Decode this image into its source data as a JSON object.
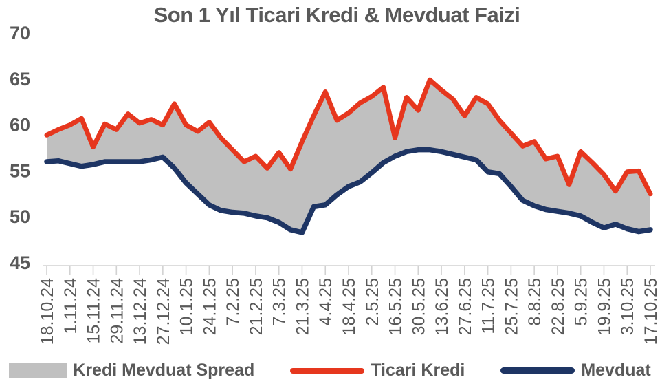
{
  "title": "Son 1 Yıl Ticari Kredi & Mevduat Faizi",
  "colors": {
    "line_red": "#E6371E",
    "line_navy": "#1E3564",
    "spread_fill": "#C0C0C0",
    "text_gray": "#595959",
    "axis_gray": "#D2D2D2"
  },
  "chart_data": {
    "type": "line",
    "title": "Son 1 Yıl Ticari Kredi & Mevduat Faizi",
    "xlabel": "",
    "ylabel": "",
    "ylim": [
      45,
      70
    ],
    "yticks": [
      45,
      50,
      55,
      60,
      65,
      70
    ],
    "grid": false,
    "legend_position": "bottom",
    "x_label_step": 2,
    "x": [
      "18.10.24",
      "25.10.24",
      "1.11.24",
      "8.11.24",
      "15.11.24",
      "22.11.24",
      "29.11.24",
      "6.12.24",
      "13.12.24",
      "20.12.24",
      "27.12.24",
      "3.1.25",
      "10.1.25",
      "17.1.25",
      "24.1.25",
      "31.1.25",
      "7.2.25",
      "14.2.25",
      "21.2.25",
      "28.2.25",
      "7.3.25",
      "14.3.25",
      "21.3.25",
      "28.3.25",
      "4.4.25",
      "11.4.25",
      "18.4.25",
      "25.4.25",
      "2.5.25",
      "9.5.25",
      "16.5.25",
      "23.5.25",
      "30.5.25",
      "6.6.25",
      "13.6.25",
      "20.6.25",
      "27.6.25",
      "4.7.25",
      "11.7.25",
      "18.7.25",
      "25.7.25",
      "1.8.25",
      "8.8.25",
      "15.8.25",
      "22.8.25",
      "29.8.25",
      "5.9.25",
      "12.9.25",
      "19.9.25",
      "26.9.25",
      "3.10.25",
      "10.10.25",
      "17.10.25"
    ],
    "series": [
      {
        "name": "Kredi Mevduat Spread",
        "type": "band",
        "color": "#C0C0C0",
        "between": [
          "Ticari Kredi",
          "Mevduat"
        ]
      },
      {
        "name": "Ticari Kredi",
        "type": "line",
        "color": "#E6371E",
        "values": [
          58.9,
          59.5,
          60.0,
          60.7,
          57.6,
          60.1,
          59.5,
          61.2,
          60.2,
          60.6,
          60.0,
          62.3,
          60.0,
          59.3,
          60.3,
          58.6,
          57.3,
          56.0,
          56.6,
          55.3,
          57.0,
          55.2,
          58.2,
          61.0,
          63.6,
          60.5,
          61.3,
          62.4,
          63.1,
          64.1,
          58.6,
          63.0,
          61.6,
          64.9,
          63.8,
          62.8,
          61.0,
          63.0,
          62.3,
          60.5,
          59.1,
          57.7,
          58.2,
          56.3,
          56.6,
          53.5,
          57.1,
          55.9,
          54.6,
          52.8,
          54.9,
          55.0,
          52.5
        ]
      },
      {
        "name": "Mevduat",
        "type": "line",
        "color": "#1E3564",
        "values": [
          56.0,
          56.1,
          55.8,
          55.5,
          55.7,
          56.0,
          56.0,
          56.0,
          56.0,
          56.2,
          56.5,
          55.3,
          53.7,
          52.5,
          51.3,
          50.7,
          50.5,
          50.4,
          50.1,
          49.9,
          49.4,
          48.6,
          48.3,
          51.1,
          51.3,
          52.4,
          53.3,
          53.8,
          54.8,
          55.9,
          56.6,
          57.1,
          57.3,
          57.3,
          57.1,
          56.8,
          56.5,
          56.2,
          54.9,
          54.7,
          53.3,
          51.8,
          51.2,
          50.8,
          50.6,
          50.4,
          50.1,
          49.4,
          48.8,
          49.2,
          48.7,
          48.4,
          48.6
        ]
      }
    ]
  }
}
